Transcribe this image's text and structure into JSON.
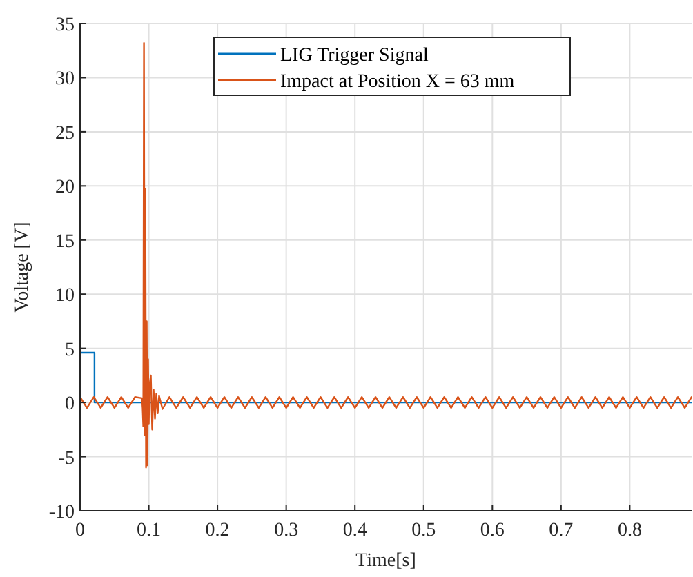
{
  "chart_data": {
    "type": "line",
    "xlabel": "Time[s]",
    "ylabel": "Voltage [V]",
    "xlim": [
      0,
      0.89
    ],
    "ylim": [
      -10,
      35
    ],
    "xticks": [
      0,
      0.1,
      0.2,
      0.3,
      0.4,
      0.5,
      0.6,
      0.7,
      0.8
    ],
    "yticks": [
      -10,
      -5,
      0,
      5,
      10,
      15,
      20,
      25,
      30,
      35
    ],
    "grid": true,
    "legend": "top",
    "line_style": "solid",
    "series": [
      {
        "name": "LIG Trigger Signal",
        "color": "#0072bd",
        "x": [
          0,
          0.021,
          0.021,
          0.1,
          0.89
        ],
        "values": [
          4.6,
          4.6,
          0,
          0,
          0
        ]
      },
      {
        "name": "Impact at Position X = 63 mm",
        "color": "#d95319",
        "x": [
          0,
          0.01,
          0.02,
          0.03,
          0.04,
          0.05,
          0.06,
          0.07,
          0.08,
          0.09,
          0.091,
          0.092,
          0.093,
          0.094,
          0.095,
          0.096,
          0.097,
          0.098,
          0.099,
          0.1,
          0.101,
          0.103,
          0.105,
          0.107,
          0.109,
          0.111,
          0.113,
          0.115,
          0.12,
          0.13,
          0.14,
          0.15,
          0.16,
          0.17,
          0.18,
          0.19,
          0.2,
          0.21,
          0.22,
          0.23,
          0.24,
          0.25,
          0.26,
          0.27,
          0.28,
          0.29,
          0.3,
          0.31,
          0.32,
          0.33,
          0.34,
          0.35,
          0.36,
          0.37,
          0.38,
          0.39,
          0.4,
          0.41,
          0.42,
          0.43,
          0.44,
          0.45,
          0.46,
          0.47,
          0.48,
          0.49,
          0.5,
          0.51,
          0.52,
          0.53,
          0.54,
          0.55,
          0.56,
          0.57,
          0.58,
          0.59,
          0.6,
          0.61,
          0.62,
          0.63,
          0.64,
          0.65,
          0.66,
          0.67,
          0.68,
          0.69,
          0.7,
          0.71,
          0.72,
          0.73,
          0.74,
          0.75,
          0.76,
          0.77,
          0.78,
          0.79,
          0.8,
          0.81,
          0.82,
          0.83,
          0.84,
          0.85,
          0.86,
          0.87,
          0.88,
          0.89
        ],
        "values": [
          0.5,
          -0.5,
          0.5,
          -0.5,
          0.5,
          -0.5,
          0.5,
          -0.5,
          0.5,
          0.4,
          -0.5,
          -2.2,
          33.2,
          -3,
          19.7,
          -6,
          7.5,
          -5.8,
          4,
          -2,
          1.5,
          2.5,
          -2.5,
          1.2,
          -1.5,
          0.8,
          -1,
          0.6,
          -0.6,
          0.5,
          -0.5,
          0.5,
          -0.5,
          0.5,
          -0.5,
          0.5,
          -0.5,
          0.5,
          -0.5,
          0.5,
          -0.5,
          0.5,
          -0.5,
          0.5,
          -0.5,
          0.5,
          -0.5,
          0.5,
          -0.5,
          0.5,
          -0.5,
          0.5,
          -0.5,
          0.5,
          -0.5,
          0.5,
          -0.5,
          0.5,
          -0.5,
          0.5,
          -0.5,
          0.5,
          -0.5,
          0.5,
          -0.5,
          0.5,
          -0.5,
          0.5,
          -0.5,
          0.5,
          -0.5,
          0.5,
          -0.5,
          0.5,
          -0.5,
          0.5,
          -0.5,
          0.5,
          -0.5,
          0.5,
          -0.5,
          0.5,
          -0.5,
          0.5,
          -0.5,
          0.5,
          -0.5,
          0.5,
          -0.5,
          0.5,
          -0.5,
          0.5,
          -0.5,
          0.5,
          -0.5,
          0.5,
          -0.5,
          0.5,
          -0.5,
          0.5,
          -0.5,
          0.5,
          -0.5,
          0.5,
          -0.5,
          0.5
        ]
      }
    ]
  }
}
